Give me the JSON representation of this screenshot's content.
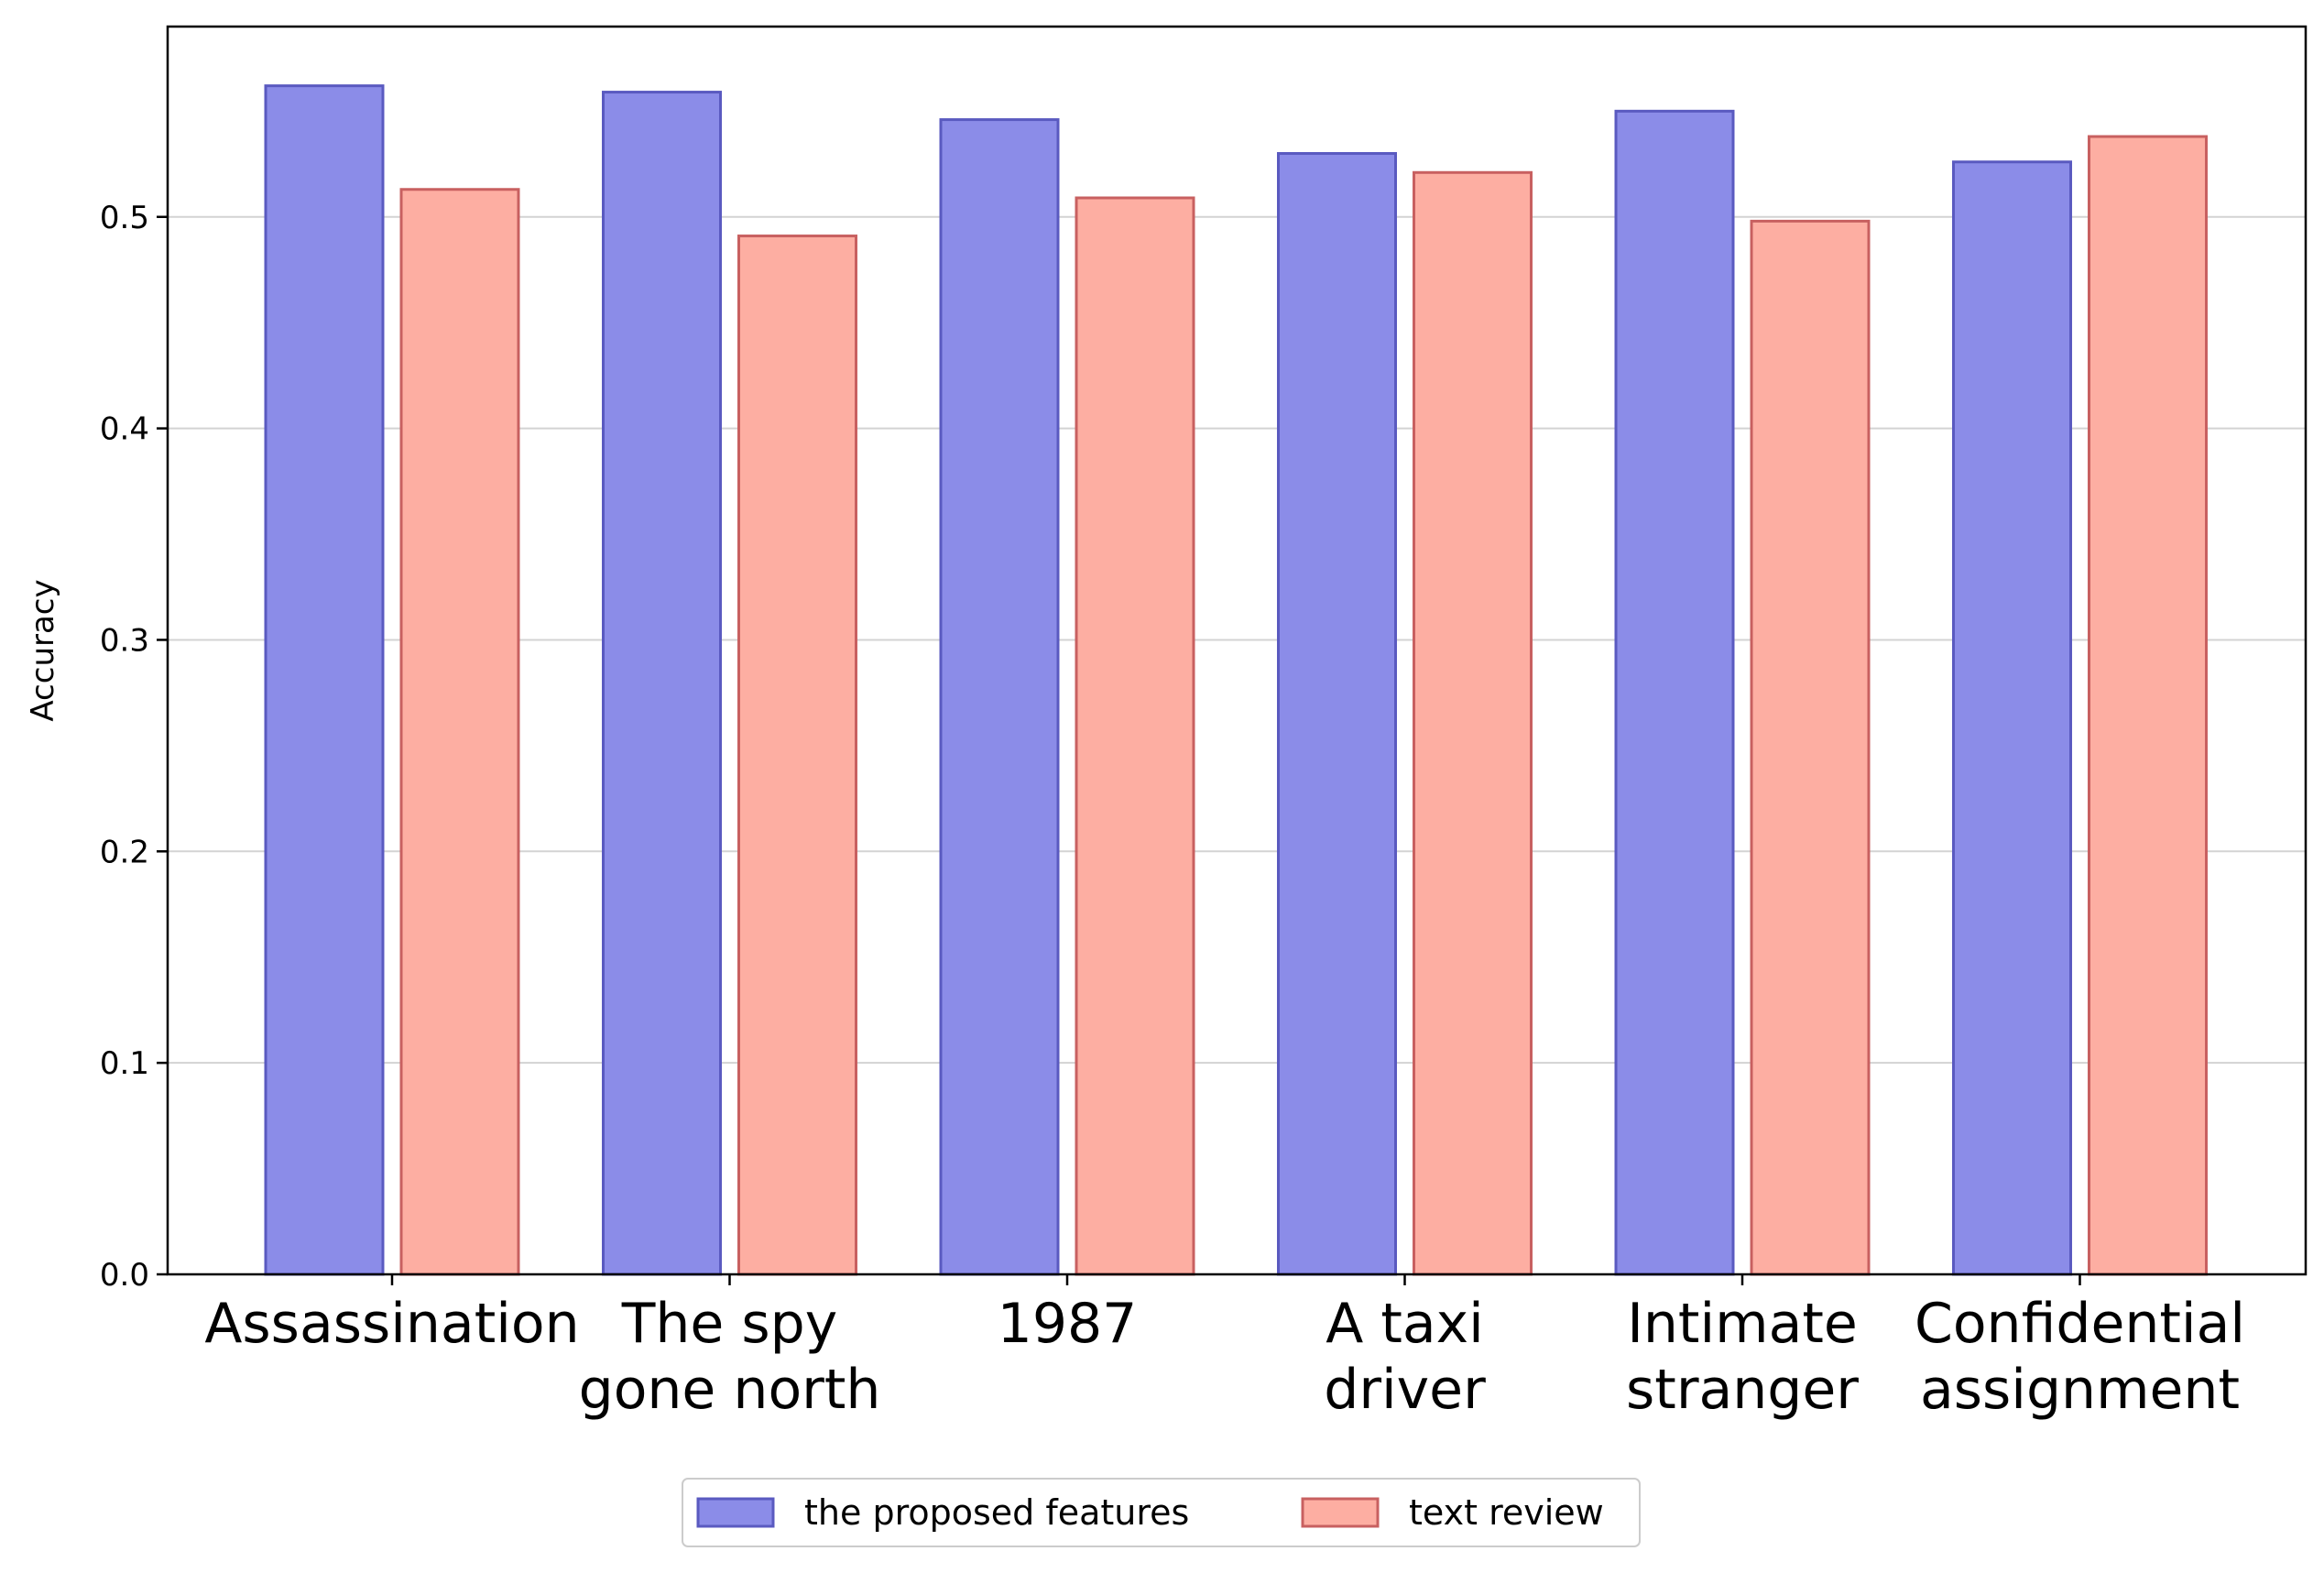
{
  "chart_data": {
    "type": "bar",
    "title": "",
    "xlabel": "",
    "ylabel": "Accuracy",
    "ylim": [
      0,
      0.59
    ],
    "yticks": [
      "0.0",
      "0.1",
      "0.2",
      "0.3",
      "0.4",
      "0.5"
    ],
    "grid": "horizontal",
    "legend_position": "bottom-center",
    "categories": [
      [
        "Assassination"
      ],
      [
        "The spy",
        "gone north"
      ],
      [
        "1987"
      ],
      [
        "A taxi",
        "driver"
      ],
      [
        "Intimate",
        "stranger"
      ],
      [
        "Confidential",
        "assignment"
      ]
    ],
    "series": [
      {
        "name": "the proposed features",
        "values": [
          0.562,
          0.559,
          0.546,
          0.53,
          0.55,
          0.526
        ],
        "fill": "#8b8ce8",
        "stroke": "#5a5ac0"
      },
      {
        "name": "text review",
        "values": [
          0.513,
          0.491,
          0.509,
          0.521,
          0.498,
          0.538
        ],
        "fill": "#fdaea2",
        "stroke": "#c86060"
      }
    ]
  }
}
